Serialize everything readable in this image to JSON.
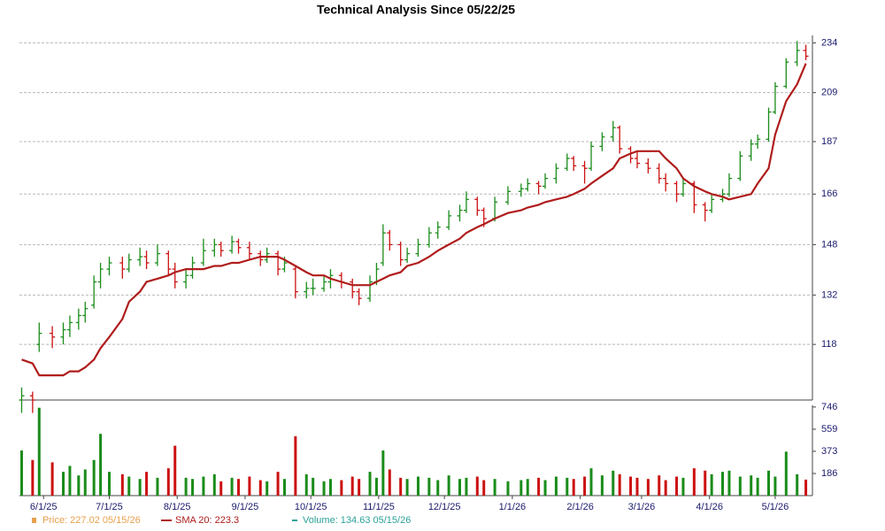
{
  "chart_data": {
    "type": "ohlc",
    "title": "Technical Analysis Since 05/22/25",
    "x": [
      "5/22/25",
      "5/27/25",
      "5/30/25",
      "6/5/25",
      "6/10/25",
      "6/13/25",
      "6/17/25",
      "6/20/25",
      "6/24/25",
      "6/27/25",
      "7/1/25",
      "7/7/25",
      "7/10/25",
      "7/15/25",
      "7/18/25",
      "7/23/25",
      "7/28/25",
      "7/31/25",
      "8/5/25",
      "8/8/25",
      "8/13/25",
      "8/18/25",
      "8/21/25",
      "8/26/25",
      "8/29/25",
      "9/3/25",
      "9/8/25",
      "9/11/25",
      "9/16/25",
      "9/19/25",
      "9/24/25",
      "9/29/25",
      "10/2/25",
      "10/7/25",
      "10/10/25",
      "10/15/25",
      "10/20/25",
      "10/23/25",
      "10/28/25",
      "10/31/25",
      "11/3/25",
      "11/6/25",
      "11/11/25",
      "11/14/25",
      "11/19/25",
      "11/24/25",
      "11/28/25",
      "12/3/25",
      "12/8/25",
      "12/11/25",
      "12/16/25",
      "12/19/25",
      "12/24/25",
      "12/30/25",
      "1/5/26",
      "1/8/26",
      "1/13/26",
      "1/16/26",
      "1/21/26",
      "1/26/26",
      "1/29/26",
      "2/3/26",
      "2/6/26",
      "2/11/26",
      "2/16/26",
      "2/19/26",
      "2/24/26",
      "2/27/26",
      "3/4/26",
      "3/9/26",
      "3/12/26",
      "3/17/26",
      "3/20/26",
      "3/25/26",
      "3/30/26",
      "4/2/26",
      "4/7/26",
      "4/10/26",
      "4/15/26",
      "4/20/26",
      "4/23/26",
      "4/28/26",
      "5/1/26",
      "5/6/26",
      "5/11/26",
      "5/15/26"
    ],
    "xlim": [
      "5/21/25",
      "5/18/26"
    ],
    "xticks": [
      "6/1/25",
      "7/1/25",
      "8/1/25",
      "9/1/25",
      "10/1/25",
      "11/1/25",
      "12/1/25",
      "1/1/26",
      "2/1/26",
      "3/1/26",
      "4/1/26",
      "5/1/26"
    ],
    "ylim": [
      104,
      238
    ],
    "log_y": true,
    "yticks": [
      118,
      132,
      148,
      166,
      187,
      209,
      234
    ],
    "y2lim": [
      0,
      760
    ],
    "y2ticks": [
      186,
      373,
      559,
      746
    ],
    "grid": true,
    "up_color": "#1a8c1a",
    "down_color": "#cc1111",
    "series": [
      {
        "kind": "ohlc",
        "values": [
          [
            104,
            107,
            101,
            105
          ],
          [
            105,
            106,
            101,
            104
          ],
          [
            118,
            124,
            116,
            121
          ],
          [
            121,
            123,
            117,
            120
          ],
          [
            120,
            124,
            118,
            122
          ],
          [
            122,
            126,
            120,
            124
          ],
          [
            124,
            128,
            122,
            126
          ],
          [
            126,
            130,
            124,
            128
          ],
          [
            129,
            138,
            128,
            136
          ],
          [
            136,
            142,
            134,
            140
          ],
          [
            140,
            144,
            138,
            142
          ],
          [
            142,
            144,
            137,
            140
          ],
          [
            140,
            145,
            139,
            143
          ],
          [
            143,
            147,
            141,
            144
          ],
          [
            144,
            146,
            140,
            142
          ],
          [
            142,
            148,
            141,
            145
          ],
          [
            145,
            146,
            138,
            140
          ],
          [
            140,
            142,
            134,
            136
          ],
          [
            136,
            140,
            134,
            138
          ],
          [
            138,
            144,
            137,
            142
          ],
          [
            142,
            150,
            141,
            146
          ],
          [
            146,
            150,
            144,
            148
          ],
          [
            148,
            149,
            144,
            146
          ],
          [
            146,
            151,
            145,
            149
          ],
          [
            149,
            150,
            145,
            147
          ],
          [
            147,
            149,
            143,
            145
          ],
          [
            145,
            146,
            141,
            143
          ],
          [
            143,
            147,
            142,
            145
          ],
          [
            145,
            146,
            138,
            140
          ],
          [
            140,
            144,
            139,
            142
          ],
          [
            140,
            141,
            131,
            133
          ],
          [
            133,
            136,
            131,
            134
          ],
          [
            134,
            137,
            132,
            134
          ],
          [
            134,
            138,
            133,
            136
          ],
          [
            136,
            140,
            134,
            138
          ],
          [
            138,
            139,
            134,
            136
          ],
          [
            136,
            137,
            131,
            133
          ],
          [
            133,
            134,
            129,
            131
          ],
          [
            131,
            138,
            130,
            136
          ],
          [
            136,
            142,
            135,
            140
          ],
          [
            142,
            155,
            141,
            152
          ],
          [
            152,
            153,
            146,
            148
          ],
          [
            148,
            149,
            141,
            143
          ],
          [
            143,
            147,
            142,
            145
          ],
          [
            145,
            150,
            144,
            148
          ],
          [
            148,
            154,
            147,
            152
          ],
          [
            152,
            156,
            150,
            154
          ],
          [
            154,
            160,
            153,
            158
          ],
          [
            158,
            162,
            156,
            160
          ],
          [
            160,
            167,
            159,
            164
          ],
          [
            164,
            165,
            158,
            160
          ],
          [
            160,
            161,
            154,
            157
          ],
          [
            157,
            165,
            156,
            163
          ],
          [
            163,
            169,
            162,
            167
          ],
          [
            167,
            170,
            165,
            168
          ],
          [
            168,
            172,
            167,
            170
          ],
          [
            170,
            171,
            166,
            169
          ],
          [
            169,
            174,
            168,
            172
          ],
          [
            172,
            178,
            170,
            176
          ],
          [
            176,
            182,
            175,
            180
          ],
          [
            180,
            181,
            175,
            177
          ],
          [
            177,
            179,
            170,
            176
          ],
          [
            176,
            187,
            175,
            185
          ],
          [
            185,
            191,
            183,
            189
          ],
          [
            189,
            196,
            187,
            193
          ],
          [
            193,
            194,
            182,
            184
          ],
          [
            184,
            185,
            178,
            180
          ],
          [
            180,
            183,
            176,
            178
          ],
          [
            178,
            180,
            174,
            176
          ],
          [
            176,
            178,
            170,
            172
          ],
          [
            172,
            174,
            167,
            170
          ],
          [
            170,
            171,
            163,
            166
          ],
          [
            166,
            172,
            165,
            170
          ],
          [
            170,
            171,
            159,
            162
          ],
          [
            162,
            163,
            156,
            160
          ],
          [
            160,
            166,
            159,
            164
          ],
          [
            164,
            168,
            163,
            166
          ],
          [
            166,
            174,
            165,
            172
          ],
          [
            172,
            183,
            171,
            181
          ],
          [
            181,
            188,
            179,
            186
          ],
          [
            186,
            190,
            184,
            188
          ],
          [
            188,
            202,
            187,
            200
          ],
          [
            200,
            214,
            199,
            212
          ],
          [
            212,
            226,
            211,
            224
          ],
          [
            224,
            235,
            222,
            230
          ],
          [
            230,
            233,
            225,
            227.02
          ]
        ]
      },
      {
        "kind": "line",
        "color": "#b01c1c",
        "values": [
          114,
          113,
          110,
          110,
          110,
          111,
          111,
          112,
          114,
          117,
          120,
          125,
          130,
          133,
          136,
          137,
          138,
          139,
          140,
          140,
          140,
          141,
          141,
          142,
          142,
          143,
          144,
          144,
          144,
          143,
          141,
          139,
          138,
          138,
          137,
          136,
          135,
          135,
          135,
          136,
          137,
          138,
          139,
          141,
          142,
          144,
          146,
          148,
          150,
          152,
          154,
          155,
          157,
          159,
          160,
          161,
          162,
          163,
          164,
          165,
          166,
          168,
          170,
          173,
          176,
          180,
          182,
          183,
          183,
          183,
          180,
          176,
          172,
          169,
          167,
          166,
          165,
          164,
          165,
          166,
          170,
          176,
          190,
          205,
          213,
          223.3
        ]
      },
      {
        "kind": "volume",
        "axis": "y2",
        "values": [
          380,
          300,
          740,
          280,
          200,
          250,
          170,
          220,
          300,
          520,
          200,
          180,
          160,
          140,
          200,
          150,
          230,
          420,
          150,
          140,
          160,
          180,
          120,
          150,
          140,
          160,
          130,
          120,
          200,
          140,
          500,
          180,
          150,
          120,
          140,
          130,
          160,
          140,
          200,
          150,
          380,
          220,
          150,
          140,
          160,
          150,
          130,
          170,
          140,
          150,
          160,
          130,
          140,
          120,
          130,
          140,
          150,
          130,
          160,
          150,
          140,
          160,
          230,
          170,
          210,
          180,
          160,
          150,
          140,
          170,
          130,
          160,
          150,
          230,
          210,
          180,
          200,
          210,
          160,
          170,
          150,
          210,
          160,
          370,
          180,
          134.63
        ]
      }
    ],
    "legend": [
      {
        "text": "Price: 227.02  05/15/26",
        "color": "#e8a04c"
      },
      {
        "text": "SMA 20: 223.3",
        "color": "#b01c1c"
      },
      {
        "text": "Volume: 134.63  05/15/26",
        "color": "#2aa198"
      }
    ]
  }
}
